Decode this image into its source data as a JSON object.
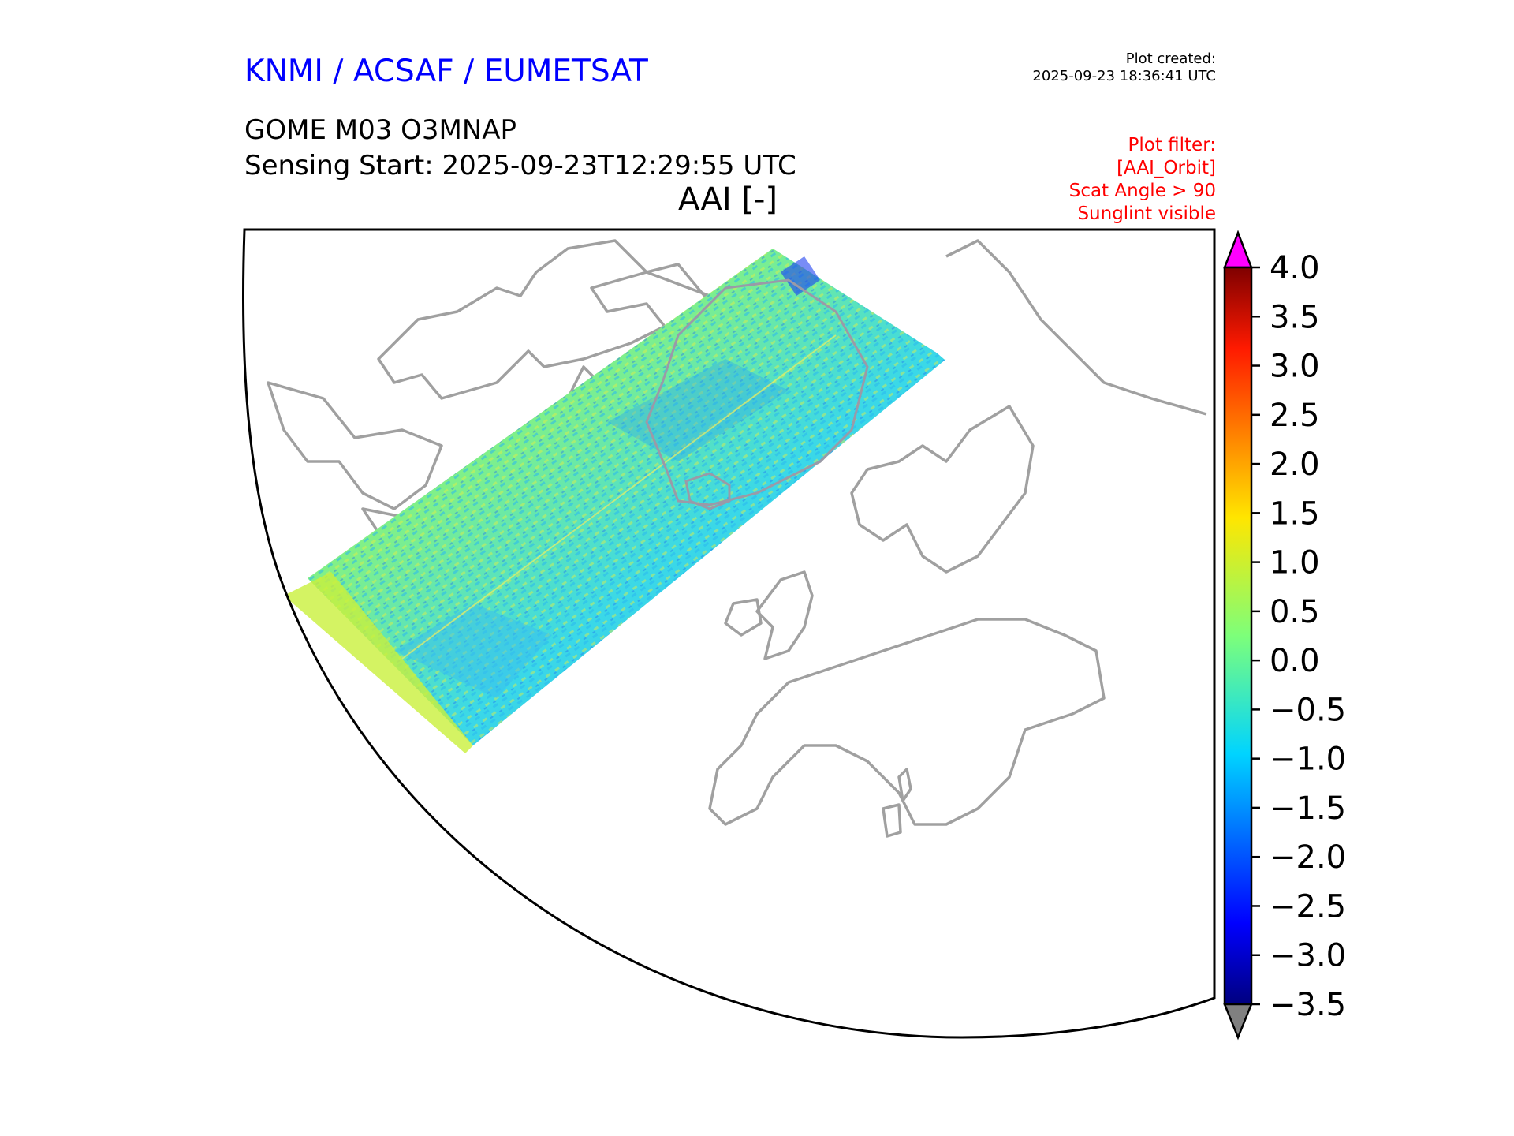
{
  "header": {
    "organisation": "KNMI / ACSAF / EUMETSAT",
    "plot_created_label": "Plot created:",
    "plot_created_time": "2025-09-23 18:36:41 UTC",
    "product": "GOME M03 O3MNAP",
    "sensing_start": "Sensing Start: 2025-09-23T12:29:55 UTC",
    "variable": "AAI [-]"
  },
  "filter": {
    "label": "Plot filter:",
    "lines": [
      "[AAI_Orbit]",
      "Scat Angle > 90",
      "Sunglint visible"
    ]
  },
  "colors": {
    "title_blue": "#0000ff",
    "filter_red": "#ff0000",
    "coastline": "#a0a0a0",
    "over_color": "#ff00ff",
    "under_color": "#808080"
  },
  "colorbar": {
    "ticks": [
      "4.0",
      "3.5",
      "3.0",
      "2.5",
      "2.0",
      "1.5",
      "1.0",
      "0.5",
      "0.0",
      "−0.5",
      "−1.0",
      "−1.5",
      "−2.0",
      "−2.5",
      "−3.0",
      "−3.5"
    ],
    "min": -3.5,
    "max": 4.0,
    "colormap": "jet",
    "extend": "both"
  }
}
